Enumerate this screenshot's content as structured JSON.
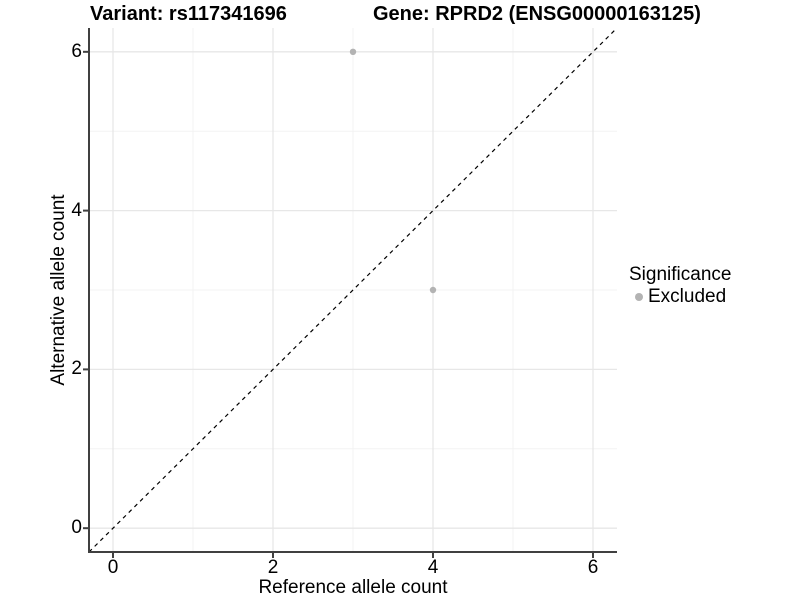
{
  "chart_data": {
    "type": "scatter",
    "title_left": "Variant: rs117341696",
    "title_right": "Gene: RPRD2 (ENSG00000163125)",
    "xlabel": "Reference allele count",
    "ylabel": "Alternative allele count",
    "xlim": [
      -0.3,
      6.3
    ],
    "ylim": [
      -0.3,
      6.3
    ],
    "xticks": [
      0,
      2,
      4,
      6
    ],
    "yticks": [
      0,
      2,
      4,
      6
    ],
    "xminor": [
      1,
      3,
      5
    ],
    "yminor": [
      1,
      3,
      5
    ],
    "grid": "major and minor gridlines, white background",
    "points": [
      {
        "x": 3,
        "y": 6,
        "significance": "Excluded"
      },
      {
        "x": 4,
        "y": 3,
        "significance": "Excluded"
      }
    ],
    "identity_line": {
      "style": "dashed",
      "color": "#000000",
      "from": [
        -0.3,
        -0.3
      ],
      "to": [
        6.3,
        6.3
      ]
    },
    "legend": {
      "title": "Significance",
      "position": "right",
      "items": [
        {
          "label": "Excluded",
          "color": "#b3b3b3"
        }
      ]
    },
    "colors": {
      "point_excluded": "#b3b3b3",
      "grid_major": "#e7e7e7",
      "grid_minor": "#f3f3f3",
      "axis_line": "#404040",
      "text": "#000000",
      "background": "#ffffff"
    }
  }
}
